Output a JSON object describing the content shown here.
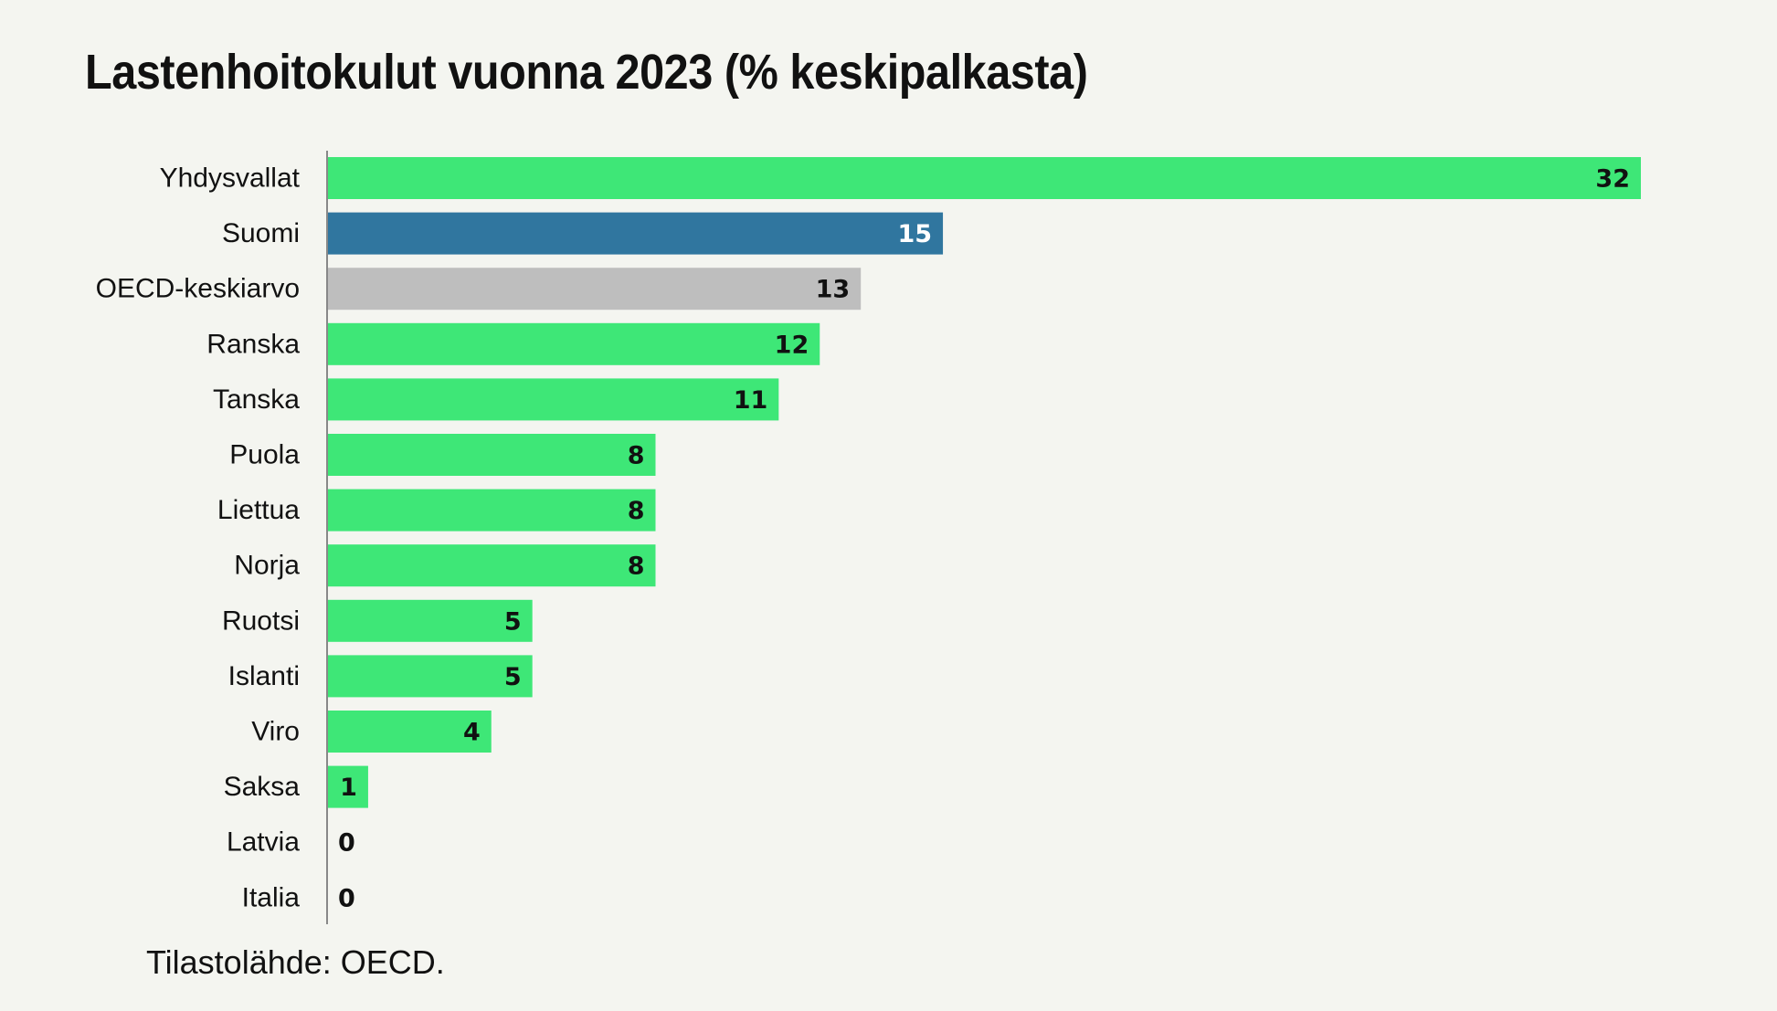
{
  "chart_data": {
    "type": "bar",
    "orientation": "horizontal",
    "title": "Lastenhoitokulut vuonna 2023 (% keskipalkasta)",
    "source": "Tilastolähde: OECD.",
    "xlabel": "",
    "ylabel": "",
    "xlim": [
      0,
      32
    ],
    "grid": false,
    "legend": "none",
    "categories": [
      "Yhdysvallat",
      "Suomi",
      "OECD-keskiarvo",
      "Ranska",
      "Tanska",
      "Puola",
      "Liettua",
      "Norja",
      "Ruotsi",
      "Islanti",
      "Viro",
      "Saksa",
      "Latvia",
      "Italia"
    ],
    "values": [
      32,
      15,
      13,
      12,
      11,
      8,
      8,
      8,
      5,
      5,
      4,
      1,
      0,
      0
    ],
    "colors": {
      "default": "#3ee777",
      "highlight": "#30769f",
      "average": "#bebebe",
      "axis": "#888888",
      "label_dark": "#111111",
      "label_light": "#ffffff"
    },
    "highlight_category": "Suomi",
    "average_category": "OECD-keskiarvo"
  }
}
